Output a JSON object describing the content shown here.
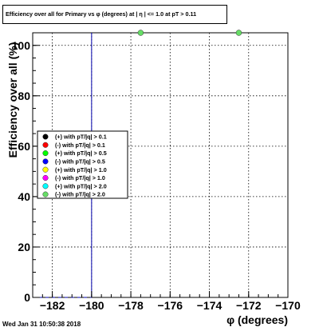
{
  "chart_data": {
    "type": "scatter",
    "title": "Efficiency over all for Primary vs φ (degrees) at | η | <= 1.0 at pT > 0.11",
    "xlabel": "φ (degrees)",
    "ylabel": "Efficiency over all (%)",
    "xlim": [
      -183,
      -170
    ],
    "ylim": [
      0,
      105
    ],
    "xticks": [
      -182,
      -180,
      -178,
      -176,
      -174,
      -172,
      -170
    ],
    "yticks": [
      0,
      20,
      40,
      60,
      80,
      100
    ],
    "xtick_labels": [
      "−182",
      "−180",
      "−178",
      "−176",
      "−174",
      "−172",
      "−170"
    ],
    "ytick_labels": [
      "0",
      "20",
      "40",
      "60",
      "80",
      "100"
    ],
    "grid": true,
    "legend_position": "left-middle",
    "series": [
      {
        "name": "(+) with pT/|q| > 0.1",
        "color": "#000000",
        "marker": "circle",
        "x": [],
        "y": []
      },
      {
        "name": "(-) with pT/|q| > 0.1",
        "color": "#ff0000",
        "marker": "circle",
        "x": [],
        "y": []
      },
      {
        "name": "(+) with pT/|q| > 0.5",
        "color": "#00ff00",
        "marker": "circle",
        "x": [],
        "y": []
      },
      {
        "name": "(-) with pT/|q| > 0.5",
        "color": "#0000ff",
        "marker": "circle",
        "x": [],
        "y": []
      },
      {
        "name": "(+) with pT/|q| > 1.0",
        "color": "#ffff00",
        "marker": "circle",
        "x": [],
        "y": []
      },
      {
        "name": "(-) with pT/|q| > 1.0",
        "color": "#ff00ff",
        "marker": "circle",
        "x": [],
        "y": []
      },
      {
        "name": "(+) with pT/|q| > 2.0",
        "color": "#00ffff",
        "marker": "circle",
        "x": [],
        "y": []
      },
      {
        "name": "(-) with pT/|q| > 2.0",
        "color": "#66dd66",
        "marker": "circle",
        "x": [
          -177.5,
          -172.5
        ],
        "y": [
          105,
          105
        ]
      }
    ],
    "reference_line": {
      "x": -180,
      "color": "#0000aa"
    }
  },
  "footer": {
    "timestamp": "Wed Jan 31 10:50:38 2018"
  }
}
